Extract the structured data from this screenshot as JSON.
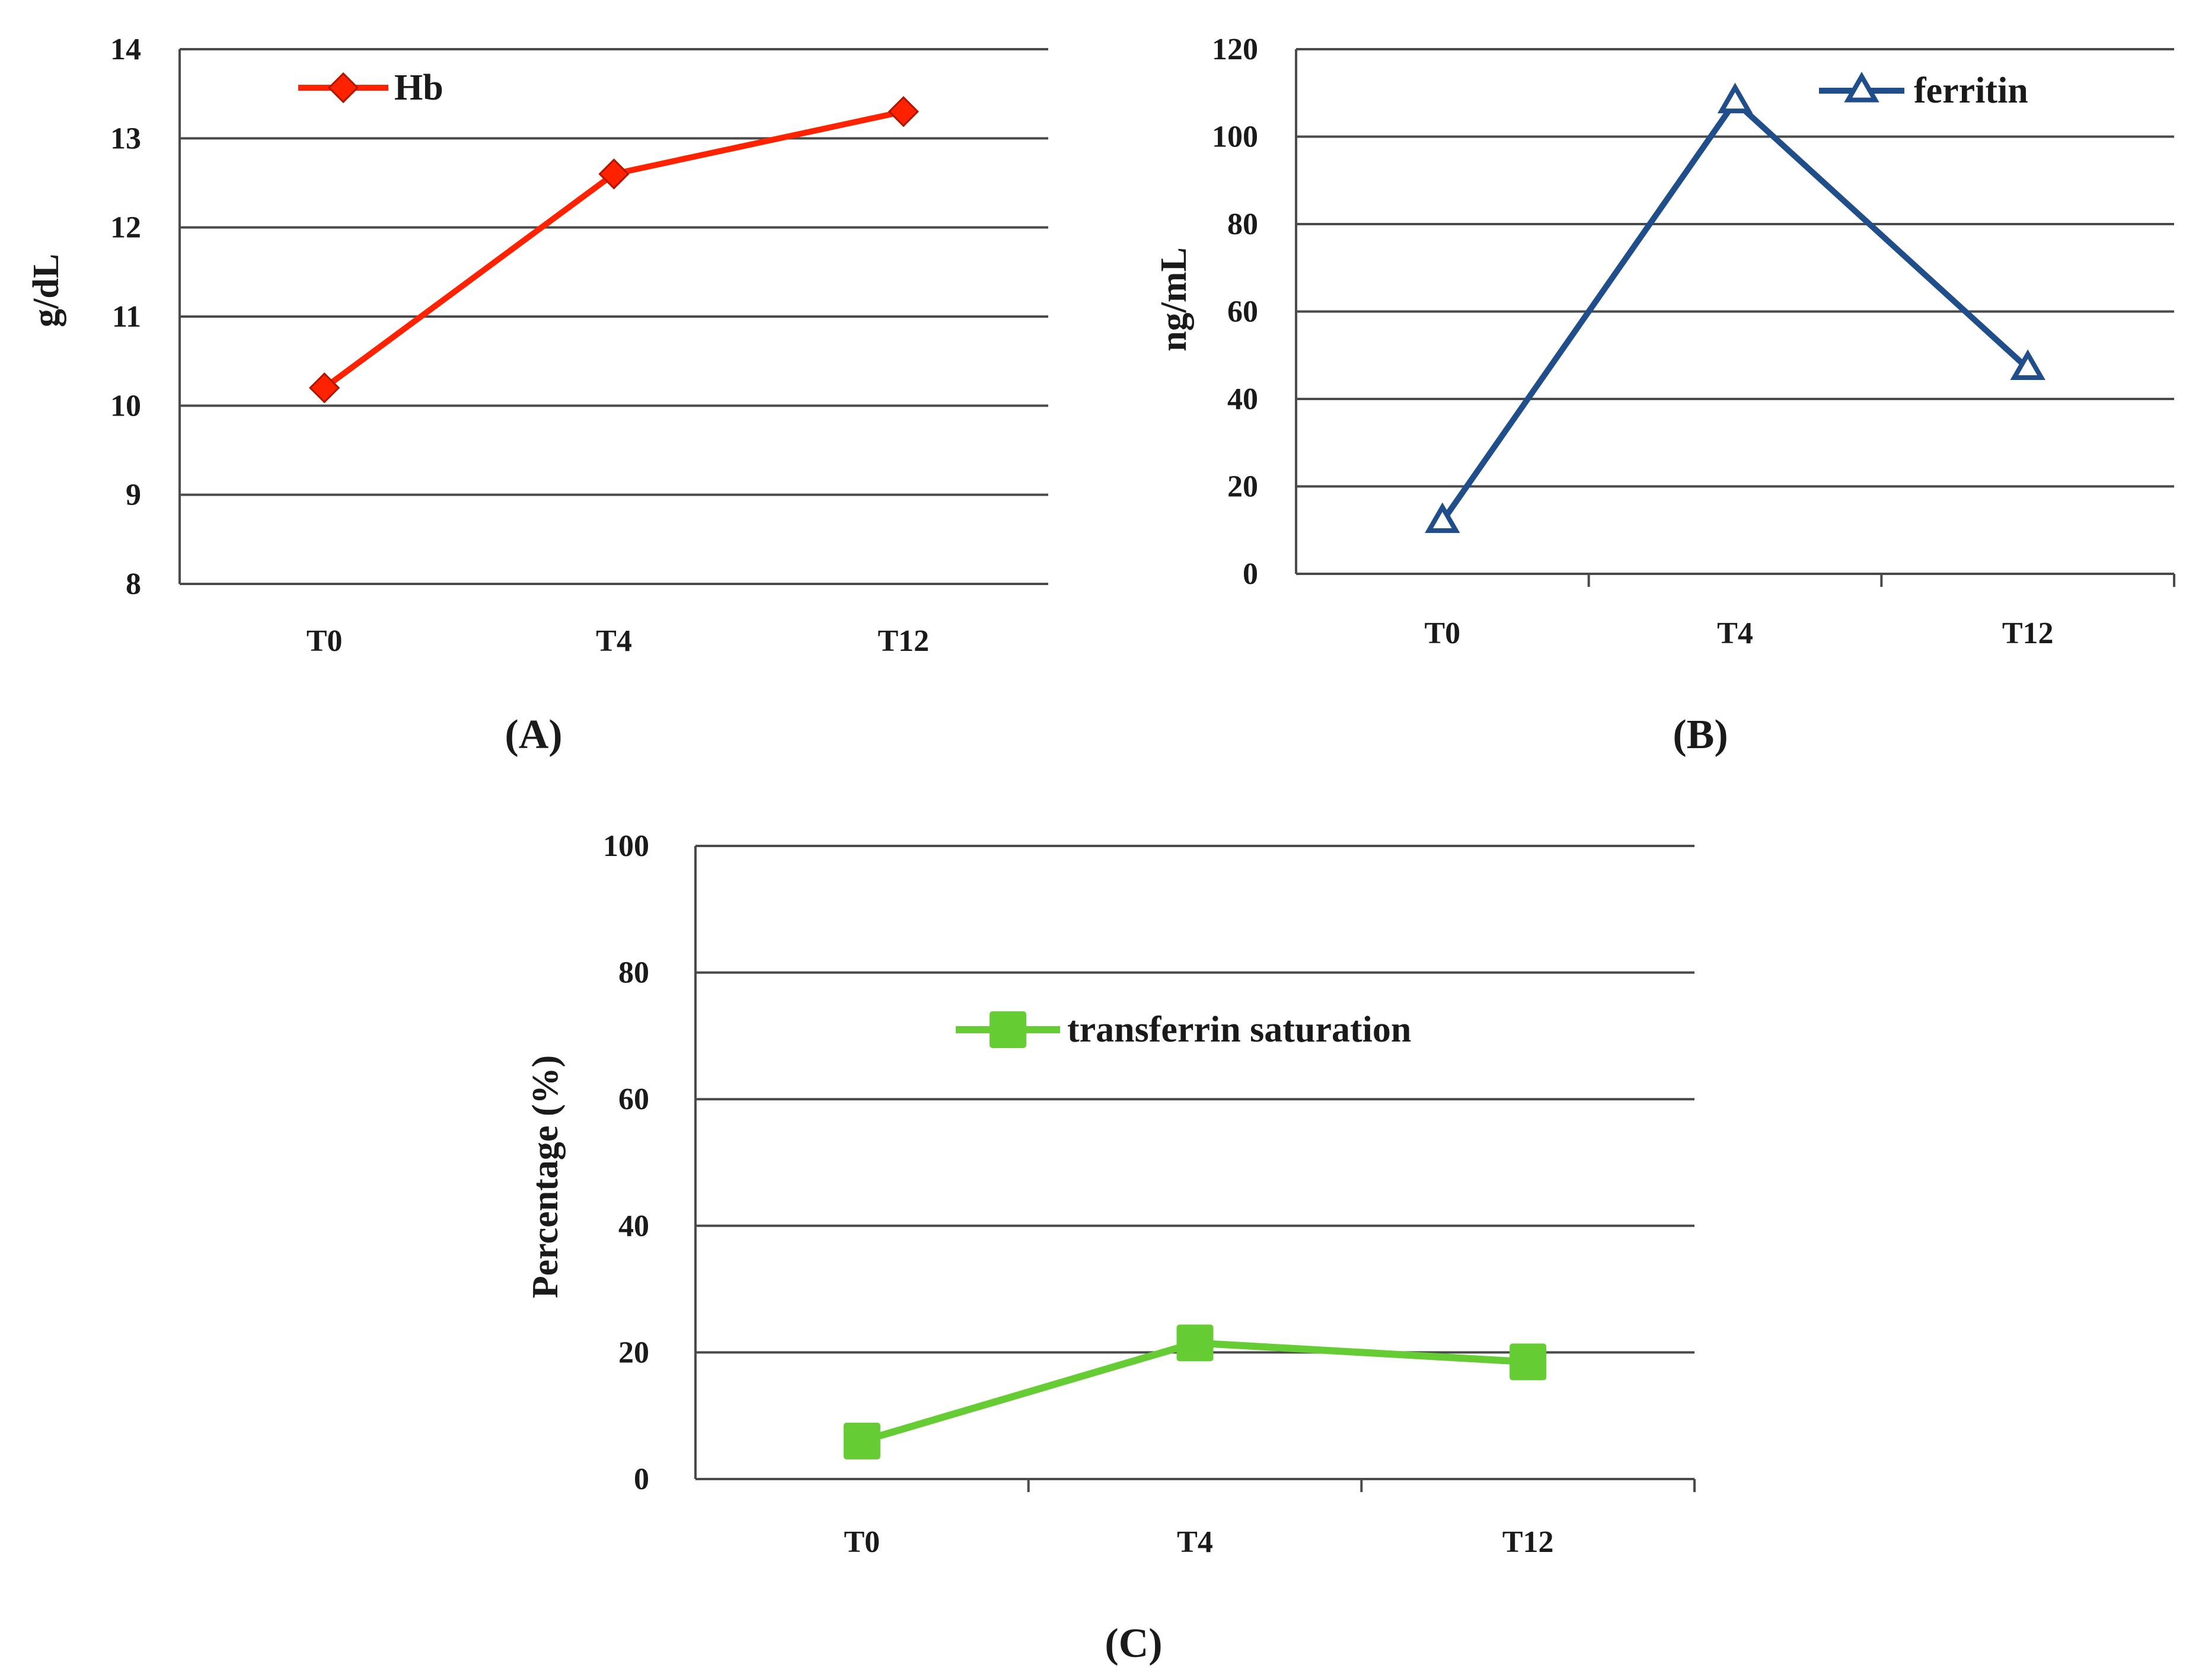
{
  "chart_data": [
    {
      "type": "line",
      "panel": "A",
      "title": "",
      "xlabel": "",
      "ylabel": "g/dL",
      "categories": [
        "T0",
        "T4",
        "T12"
      ],
      "ylim": [
        8,
        14
      ],
      "yticks": [
        8,
        9,
        10,
        11,
        12,
        13,
        14
      ],
      "grid": true,
      "legend_position": "top-left",
      "series": [
        {
          "name": "Hb",
          "values": [
            10.2,
            12.6,
            13.3
          ],
          "color": "#ff2200",
          "marker": "diamond"
        }
      ]
    },
    {
      "type": "line",
      "panel": "B",
      "title": "",
      "xlabel": "",
      "ylabel": "ng/mL",
      "categories": [
        "T0",
        "T4",
        "T12"
      ],
      "ylim": [
        0,
        120
      ],
      "yticks": [
        0,
        20,
        40,
        60,
        80,
        100,
        120
      ],
      "grid": true,
      "legend_position": "top-right",
      "series": [
        {
          "name": "ferritin",
          "values": [
            12,
            108,
            47
          ],
          "color": "#1f4e8a",
          "marker": "triangle"
        }
      ]
    },
    {
      "type": "line",
      "panel": "C",
      "title": "",
      "xlabel": "",
      "ylabel": "Percentage (%)",
      "categories": [
        "T0",
        "T4",
        "T12"
      ],
      "ylim": [
        0,
        100
      ],
      "yticks": [
        0,
        20,
        40,
        60,
        80,
        100
      ],
      "grid": true,
      "legend_position": "upper-middle",
      "series": [
        {
          "name": "transferrin saturation",
          "values": [
            6,
            21.5,
            18.5
          ],
          "color": "#66cc33",
          "marker": "square"
        }
      ]
    }
  ],
  "captions": {
    "A": {
      "open": "(",
      "letter": "A",
      "close": ")"
    },
    "B": {
      "open": "(",
      "letter": "B",
      "close": ")"
    },
    "C": {
      "open": "(",
      "letter": "C",
      "close": ")"
    }
  }
}
